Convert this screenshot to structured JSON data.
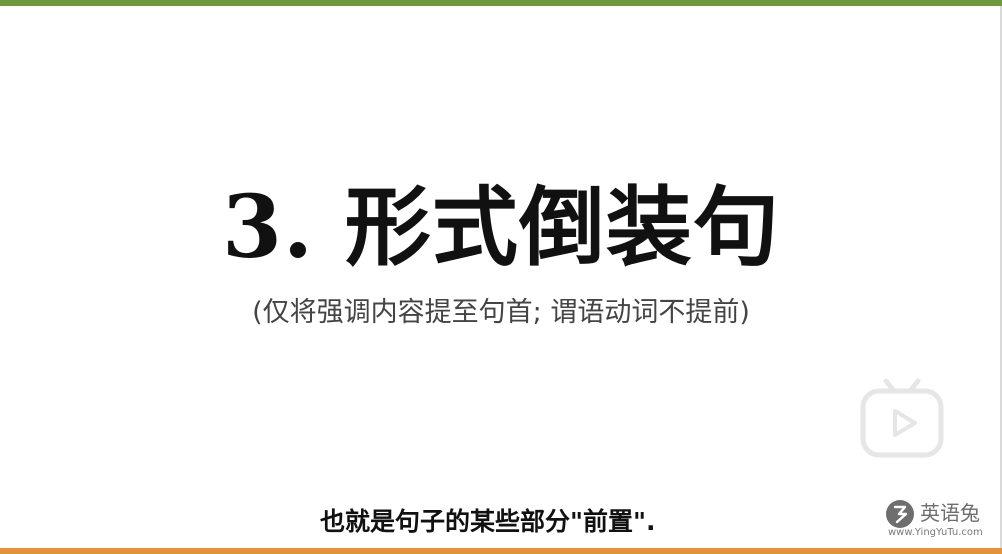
{
  "slide": {
    "title": "3. 形式倒装句",
    "subtitle": "(仅将强调内容提至句首; 谓语动词不提前)"
  },
  "caption": {
    "text": "也就是句子的某些部分\"前置\"."
  },
  "watermark": {
    "brand": "英语兔",
    "url": "www.YingYuTu.com",
    "icon": "rabbit-logo-icon"
  },
  "player": {
    "play_icon": "play-icon"
  },
  "colors": {
    "top_bar": "#6e9a3f",
    "bottom_bar": "#e4913a",
    "title": "#111111",
    "subtitle": "#444444",
    "play_button": "#e6e6e6"
  }
}
